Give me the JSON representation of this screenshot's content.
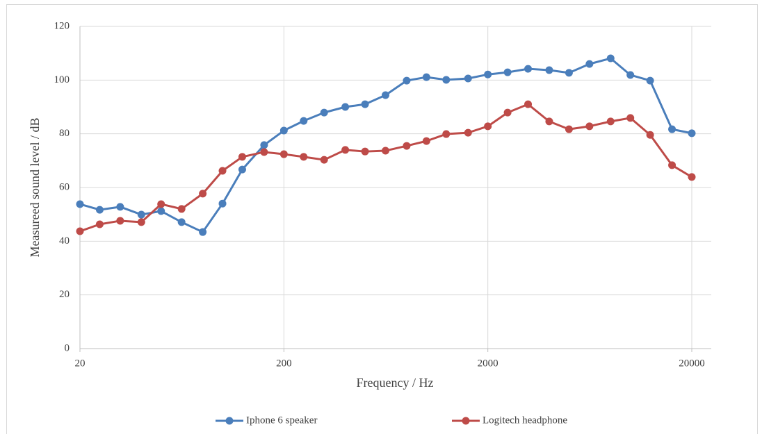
{
  "chart_data": {
    "type": "line",
    "x_label": "Frequency / Hz",
    "y_label": "Measureed sound level / dB",
    "x": [
      20,
      25,
      31.5,
      40,
      50,
      63,
      80,
      100,
      125,
      160,
      200,
      250,
      315,
      400,
      500,
      630,
      800,
      1000,
      1250,
      1600,
      2000,
      2500,
      3150,
      4000,
      5000,
      6300,
      8000,
      10000,
      12500,
      16000,
      20000
    ],
    "series": [
      {
        "name": "Iphone 6 speaker",
        "color": "#4a7ebb",
        "values": [
          53.8,
          51.7,
          52.8,
          49.9,
          51.2,
          47.1,
          43.4,
          54.0,
          66.7,
          75.8,
          81.2,
          84.8,
          87.9,
          90.0,
          91.0,
          94.4,
          99.8,
          101.1,
          100.1,
          100.6,
          102.1,
          102.9,
          104.2,
          103.7,
          102.7,
          106.0,
          108.1,
          101.9,
          99.8,
          81.7,
          80.2
        ]
      },
      {
        "name": "Logitech headphone",
        "color": "#be4b48",
        "values": [
          43.7,
          46.3,
          47.6,
          47.1,
          53.8,
          52.0,
          57.7,
          66.2,
          71.4,
          73.2,
          72.4,
          71.4,
          70.3,
          74.0,
          73.4,
          73.7,
          75.5,
          77.3,
          79.9,
          80.4,
          82.8,
          87.9,
          91.0,
          84.6,
          81.7,
          82.8,
          84.6,
          85.9,
          79.6,
          68.3,
          63.9
        ]
      }
    ],
    "xlim": [
      20,
      20000
    ],
    "xticks": [
      20,
      200,
      2000,
      20000
    ],
    "xlog": true,
    "ylim": [
      0,
      120
    ],
    "yticks": [
      0,
      20,
      40,
      60,
      80,
      100,
      120
    ],
    "grid": true,
    "legend": "bottom"
  }
}
